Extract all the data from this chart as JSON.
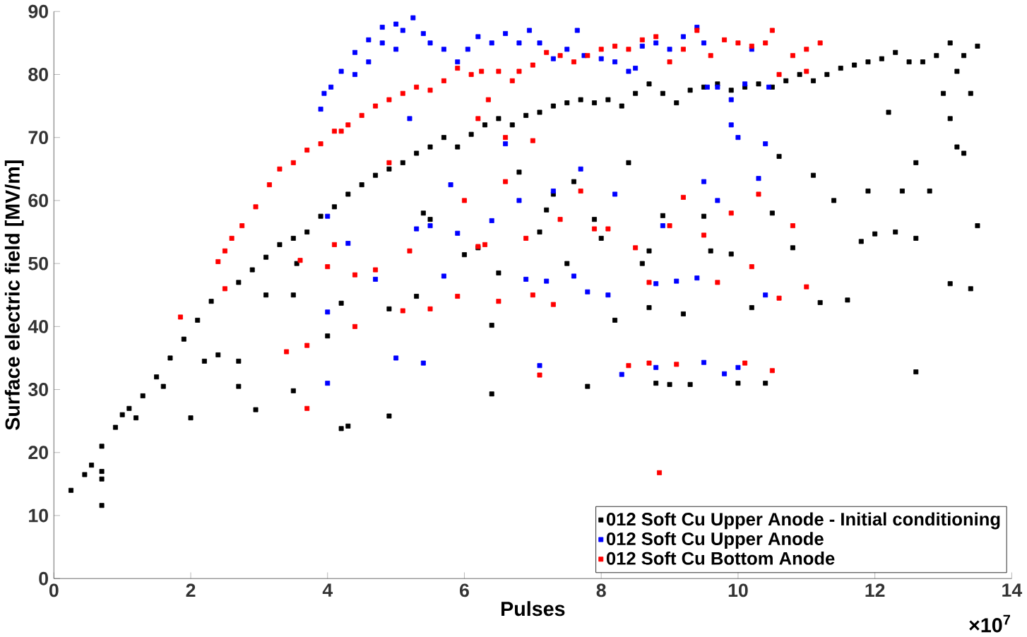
{
  "chart_data": {
    "type": "scatter",
    "xlabel": "Pulses",
    "ylabel": "Surface electric field [MV/m]",
    "xlim": [
      0,
      14
    ],
    "xticks": [
      0,
      2,
      4,
      6,
      8,
      10,
      12,
      14
    ],
    "ylim": [
      0,
      90
    ],
    "yticks": [
      0,
      10,
      20,
      30,
      40,
      50,
      60,
      70,
      80,
      90
    ],
    "grid": false,
    "legend": "bottom right",
    "marker": "square",
    "annotations": [
      "×10$^{7}$"
    ],
    "series": [
      {
        "name": "012 Soft Cu Upper Anode - Initial conditioning",
        "color": "#000000",
        "x": [
          0.25,
          0.45,
          0.55,
          0.7,
          0.9,
          1.0,
          1.1,
          1.3,
          1.5,
          1.7,
          1.9,
          2.1,
          2.3,
          2.5,
          2.7,
          2.9,
          3.1,
          3.3,
          3.5,
          3.55,
          3.7,
          3.9,
          4.1,
          4.3,
          4.5,
          4.7,
          4.9,
          5.1,
          5.3,
          5.5,
          5.7,
          5.9,
          6.1,
          6.3,
          6.5,
          6.7,
          6.9,
          7.1,
          7.3,
          7.5,
          7.7,
          7.9,
          8.1,
          8.3,
          8.5,
          8.7,
          8.9,
          9.1,
          9.3,
          9.5,
          9.7,
          9.9,
          10.1,
          10.3,
          10.5,
          10.7,
          10.9,
          11.1,
          11.3,
          11.5,
          11.7,
          11.9,
          12.1,
          12.3,
          12.5,
          12.7,
          12.9,
          13.1,
          13.3,
          13.5,
          0.7,
          0.7,
          0.7,
          1.2,
          1.6,
          2.0,
          2.2,
          2.4,
          2.7,
          2.7,
          2.95,
          3.1,
          3.5,
          3.5,
          4.0,
          4.2,
          4.3,
          4.2,
          4.9,
          4.9,
          5.3,
          5.4,
          5.5,
          6.0,
          6.2,
          6.4,
          6.4,
          6.5,
          6.8,
          7.1,
          7.2,
          7.3,
          7.5,
          7.6,
          7.8,
          7.9,
          8.0,
          8.2,
          8.4,
          8.6,
          8.7,
          8.7,
          8.9,
          8.8,
          9.0,
          9.2,
          9.3,
          9.5,
          9.6,
          9.9,
          10.0,
          10.2,
          10.3,
          10.4,
          10.5,
          10.6,
          10.8,
          11.1,
          11.2,
          11.4,
          11.6,
          11.8,
          11.9,
          12.0,
          12.2,
          12.3,
          12.4,
          12.6,
          12.6,
          12.6,
          12.8,
          13.0,
          13.1,
          13.2,
          13.3,
          13.4,
          13.1,
          13.5,
          13.2,
          13.4
        ],
        "values": [
          14,
          16.5,
          18,
          21,
          24,
          26,
          27,
          29,
          32,
          35,
          38,
          41,
          44,
          null,
          47,
          49,
          51,
          53,
          54,
          50,
          55,
          57.5,
          59,
          61,
          62.5,
          64,
          65,
          66,
          67.5,
          68.5,
          70,
          68.5,
          70.5,
          72,
          73,
          72,
          73.5,
          74,
          75,
          75.5,
          76,
          75.5,
          76,
          75,
          77,
          78.5,
          77,
          75.5,
          77.5,
          78,
          78.5,
          77.5,
          78,
          78.5,
          78,
          79,
          80,
          79,
          80,
          81,
          81.5,
          82,
          82.5,
          83.5,
          82,
          82,
          83,
          85,
          83,
          84.5,
          11.6,
          15.8,
          17,
          25.5,
          30.5,
          25.5,
          34.5,
          35.5,
          34.5,
          30.5,
          26.8,
          45,
          29.8,
          45,
          38.5,
          23.8,
          24.2,
          43.7,
          25.8,
          42.8,
          44.8,
          58,
          57,
          51.4,
          52.5,
          40.2,
          29.3,
          48.5,
          64.5,
          55,
          58.5,
          61,
          50,
          63,
          30.5,
          57,
          54,
          41,
          66,
          50,
          43,
          52,
          57.6,
          31,
          30.8,
          42,
          30.8,
          57.5,
          52,
          51.5,
          31,
          43,
          null,
          31,
          58,
          67,
          52.5,
          64,
          43.8,
          60,
          44.2,
          53.5,
          61.5,
          54.7,
          74,
          55,
          61.5,
          54,
          32.8,
          66,
          61.5,
          77,
          73,
          68.5,
          67.5,
          46,
          46.8,
          56,
          80.5,
          77
        ]
      },
      {
        "name": "012 Soft Cu Upper Anode",
        "color": "#0000ff",
        "x": [
          3.9,
          3.95,
          4.05,
          4.2,
          4.4,
          4.6,
          4.8,
          5.0,
          5.1,
          5.25,
          5.4,
          5.5,
          5.7,
          5.9,
          6.05,
          6.2,
          6.4,
          6.6,
          6.8,
          6.95,
          7.1,
          7.3,
          7.5,
          7.65,
          7.75,
          8.0,
          8.2,
          8.4,
          8.6,
          8.8,
          9.0,
          9.2,
          9.4,
          9.5,
          9.55,
          9.7,
          9.9,
          10.1,
          10.2,
          10.4,
          10.45,
          4.0,
          4.0,
          4.0,
          4.3,
          4.4,
          4.6,
          4.7,
          4.8,
          5.0,
          5.0,
          5.2,
          5.3,
          5.4,
          5.5,
          5.7,
          5.8,
          5.9,
          6.4,
          6.6,
          6.8,
          6.9,
          7.1,
          7.2,
          7.3,
          7.6,
          7.7,
          7.8,
          8.1,
          8.2,
          8.3,
          8.5,
          8.8,
          8.9,
          8.8,
          9.1,
          9.4,
          9.5,
          9.5,
          9.7,
          9.8,
          10.0,
          10.3,
          10.4,
          10.4,
          10.0,
          9.9
        ],
        "values": [
          74.5,
          77,
          78,
          80.5,
          83.5,
          85.5,
          87.5,
          88,
          87,
          89,
          86.5,
          85,
          84,
          82,
          84,
          86,
          85,
          86.5,
          85,
          87,
          85,
          82.5,
          84,
          87,
          83,
          82.5,
          82,
          80.5,
          84.5,
          85,
          84,
          86,
          87.5,
          85,
          78,
          78,
          76,
          78.5,
          84,
          null,
          78,
          42.3,
          31,
          57.5,
          53.2,
          80,
          82,
          47.5,
          85,
          35,
          84,
          73,
          55.5,
          34.2,
          56,
          48,
          62.5,
          54.8,
          56.8,
          69,
          60,
          47.5,
          33.8,
          47.2,
          61.5,
          48,
          65,
          45.5,
          45,
          61,
          32.4,
          81,
          46.8,
          56,
          33.5,
          47.2,
          47.7,
          34.3,
          63,
          60,
          32.5,
          33.5,
          63.5,
          45,
          69,
          70,
          72
        ]
      },
      {
        "name": "012 Soft Cu Bottom Anode",
        "color": "#ff0000",
        "x": [
          2.4,
          2.5,
          2.6,
          2.75,
          2.95,
          3.15,
          3.3,
          3.5,
          3.7,
          3.9,
          4.1,
          4.3,
          4.5,
          4.7,
          4.9,
          5.1,
          5.3,
          5.5,
          5.7,
          5.9,
          6.1,
          6.25,
          6.35,
          6.5,
          6.7,
          6.8,
          7.0,
          7.2,
          7.4,
          7.6,
          7.8,
          8.0,
          8.2,
          8.4,
          8.6,
          8.8,
          9.0,
          9.2,
          9.4,
          9.6,
          9.8,
          10.0,
          10.2,
          10.4,
          10.5,
          10.6,
          10.8,
          11.0,
          11.2,
          1.85,
          2.5,
          3.4,
          3.6,
          3.7,
          3.7,
          4.0,
          4.1,
          4.2,
          4.4,
          4.4,
          4.7,
          4.9,
          5.1,
          5.2,
          5.5,
          5.9,
          6.0,
          6.2,
          6.3,
          6.5,
          6.6,
          6.9,
          7.0,
          7.1,
          7.3,
          7.4,
          7.7,
          7.9,
          8.1,
          8.4,
          8.5,
          8.7,
          8.85,
          8.7,
          9.0,
          9.1,
          9.2,
          9.5,
          9.7,
          9.9,
          10.1,
          10.2,
          10.3,
          10.5,
          10.6,
          11.0,
          11.0,
          10.8,
          6.2,
          6.6,
          7.0
        ],
        "values": [
          50.3,
          52,
          54,
          56,
          59,
          62.5,
          65,
          66,
          68,
          69,
          71,
          72,
          73.5,
          75,
          76,
          77,
          78,
          77.5,
          79,
          81,
          80,
          80.5,
          76,
          80.5,
          79,
          80.5,
          81.5,
          83.5,
          83,
          82,
          83,
          84,
          84.5,
          84,
          85.5,
          86,
          82,
          84,
          87,
          83,
          85.5,
          85,
          84.5,
          85,
          87,
          80,
          83,
          84,
          85,
          41.5,
          46,
          36,
          50.5,
          37,
          27,
          49.5,
          53,
          71,
          40,
          48.2,
          49,
          66,
          42.5,
          52,
          42.8,
          44.8,
          60,
          52.7,
          53,
          44,
          63,
          54,
          45,
          32.3,
          43.5,
          57,
          61.5,
          55.5,
          55.5,
          33.8,
          52.5,
          34.2,
          16.8,
          47,
          56,
          34,
          60.5,
          54.5,
          47,
          58,
          34.2,
          49.5,
          61,
          33,
          44.5,
          46.3,
          80.5,
          56,
          73,
          70,
          69.5
        ]
      }
    ]
  }
}
